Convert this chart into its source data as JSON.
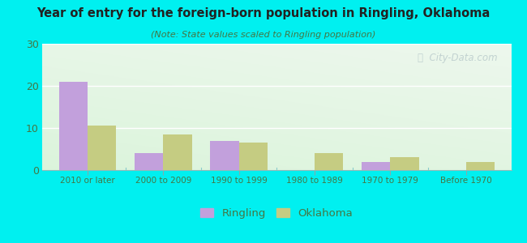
{
  "title": "Year of entry for the foreign-born population in Ringling, Oklahoma",
  "subtitle": "(Note: State values scaled to Ringling population)",
  "categories": [
    "2010 or later",
    "2000 to 2009",
    "1990 to 1999",
    "1980 to 1989",
    "1970 to 1979",
    "Before 1970"
  ],
  "ringling_values": [
    21,
    4,
    7,
    0,
    2,
    0
  ],
  "oklahoma_values": [
    10.5,
    8.5,
    6.5,
    4,
    3,
    2
  ],
  "ringling_color": "#c2a0dc",
  "oklahoma_color": "#c5cc82",
  "bg_outer": "#00f0f0",
  "ylim": [
    0,
    30
  ],
  "yticks": [
    0,
    10,
    20,
    30
  ],
  "bar_width": 0.38,
  "legend_labels": [
    "Ringling",
    "Oklahoma"
  ],
  "watermark": "ⓘ  City-Data.com",
  "title_color": "#222222",
  "subtitle_color": "#447744",
  "tick_color": "#447744",
  "grid_color": "#ffffff"
}
